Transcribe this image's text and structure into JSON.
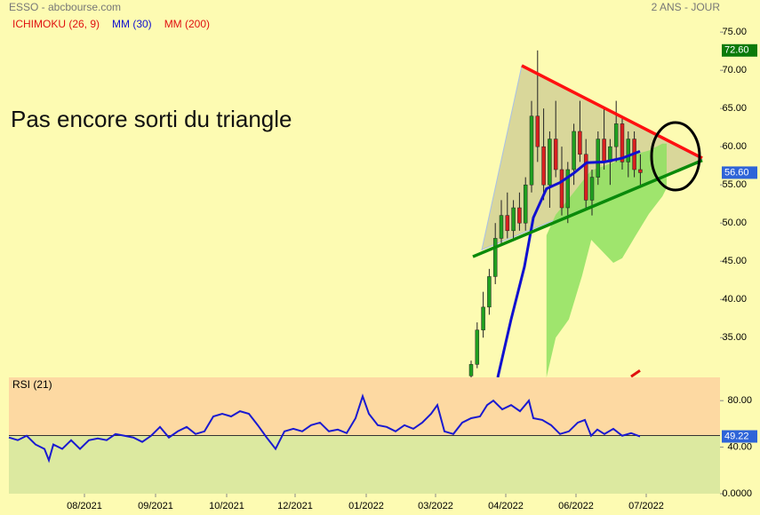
{
  "chart_data": {
    "type": "candlestick",
    "title": "ESSO - abcbourse.com",
    "period": "2 ANS - JOUR",
    "legend": [
      {
        "name": "ICHIMOKU (26, 9)",
        "color": "#e01010"
      },
      {
        "name": "MM (30)",
        "color": "#1010d0"
      },
      {
        "name": "MM (200)",
        "color": "#e01010"
      }
    ],
    "annotation": "Pas encore sorti du triangle",
    "xlim": [
      0,
      100
    ],
    "xticks": [
      {
        "value": 10.625,
        "label": "08/2021"
      },
      {
        "value": 20.625,
        "label": "09/2021"
      },
      {
        "value": 30.625,
        "label": "10/2021"
      },
      {
        "value": 40.25,
        "label": "12/2021"
      },
      {
        "value": 50.25,
        "label": "01/2022"
      },
      {
        "value": 60,
        "label": "03/2022"
      },
      {
        "value": 69.875,
        "label": "04/2022"
      },
      {
        "value": 79.75,
        "label": "06/2022"
      },
      {
        "value": 89.625,
        "label": "07/2022"
      }
    ],
    "ylim": [
      29.8,
      79.2
    ],
    "yticks": [
      {
        "value": 35,
        "label": "35.00"
      },
      {
        "value": 40,
        "label": "40.00"
      },
      {
        "value": 45,
        "label": "45.00"
      },
      {
        "value": 50,
        "label": "50.00"
      },
      {
        "value": 55,
        "label": "55.00"
      },
      {
        "value": 60,
        "label": "60.00"
      },
      {
        "value": 65,
        "label": "65.00"
      },
      {
        "value": 70,
        "label": "70.00"
      },
      {
        "value": 75,
        "label": "75.00"
      }
    ],
    "price_labels": [
      {
        "value": 72.6,
        "label": "72.60",
        "color": "#0a7a0a"
      },
      {
        "value": 56.6,
        "label": "56.60",
        "color": "#2e64d8"
      }
    ],
    "candles": {
      "up_color": "#20a020",
      "down_color": "#d82020",
      "x": [
        65,
        65.85,
        66.7,
        67.55,
        68.4,
        69.25,
        70.1,
        70.95,
        71.8,
        72.65,
        73.5,
        74.35,
        75.2,
        76.05,
        76.9,
        77.75,
        78.6,
        79.45,
        80.3,
        81.15,
        82,
        82.85,
        83.7,
        84.55,
        85.4,
        86.25,
        87.1,
        87.95,
        88.8
      ],
      "open": [
        30,
        31.5,
        36,
        39,
        43,
        48,
        51,
        49,
        52,
        50,
        55,
        64,
        60,
        55,
        61,
        57,
        52,
        57,
        62,
        59,
        53,
        56,
        61,
        58,
        60,
        63,
        58,
        61,
        57
      ],
      "high": [
        32,
        37,
        41,
        44,
        50,
        53,
        54,
        53,
        54,
        56,
        66,
        72.6,
        65,
        62,
        66,
        60,
        58,
        63,
        66,
        61,
        57,
        62,
        65,
        61,
        66,
        64,
        62,
        62,
        59
      ],
      "low": [
        29,
        31,
        35,
        38,
        42,
        47,
        48,
        48,
        49,
        49,
        54,
        58,
        53,
        52,
        56,
        51,
        50,
        55,
        58,
        52,
        51,
        55,
        57,
        55,
        58,
        57,
        56,
        56,
        55
      ],
      "close": [
        31.5,
        36,
        39,
        43,
        48,
        51,
        49,
        52,
        50,
        55,
        64,
        60,
        55,
        61,
        57,
        52,
        57,
        62,
        59,
        53,
        56,
        61,
        58,
        60,
        63,
        58,
        61,
        57,
        56.6
      ]
    },
    "series": [
      {
        "name": "MM (30)",
        "color": "#1010d0",
        "x": [
          68.75,
          70.6,
          72.5,
          73.75,
          75.6,
          77.5,
          79.4,
          81.25,
          83.75,
          86.25,
          88.75
        ],
        "values": [
          29.8,
          37.3,
          44.3,
          50.7,
          54.5,
          55.3,
          56.5,
          57.9,
          58.0,
          58.5,
          59.4
        ]
      },
      {
        "name": "MM (200)",
        "color": "#e01010",
        "x": [
          87.5,
          88.75
        ],
        "values": [
          29.9,
          30.7
        ]
      }
    ],
    "cloud": {
      "color": "#8ee060",
      "x": [
        75.6,
        76.9,
        78.75,
        80.6,
        81.9,
        85,
        86.25,
        88.1,
        90,
        91.9,
        92.5
      ],
      "upper": [
        48.4,
        51.1,
        53.2,
        55.4,
        56.9,
        57.9,
        58.5,
        59.0,
        59.5,
        60.4,
        60.4
      ],
      "lower": [
        29.8,
        35.0,
        37.4,
        43.1,
        47.8,
        44.8,
        45.4,
        48.3,
        51.2,
        53.5,
        54.6
      ]
    },
    "trendlines": [
      {
        "color": "#ff1010",
        "x": [
          72.125,
          97.5
        ],
        "y": [
          70.6,
          58.5
        ]
      },
      {
        "color": "#0a8a0a",
        "x": [
          65.25,
          97.5
        ],
        "y": [
          45.6,
          58.2
        ]
      }
    ],
    "triangle_fill": {
      "color": "#c9c890",
      "x": [
        72.125,
        66.5,
        97.5
      ],
      "y": [
        70.6,
        46.5,
        58.3
      ]
    },
    "rsi": {
      "label": "RSI (21)",
      "color": "#1a1ad0",
      "ylim": [
        0,
        100
      ],
      "yticks": [
        {
          "value": 0,
          "label": "0.0000"
        },
        {
          "value": 40,
          "label": "40.00"
        },
        {
          "value": 80,
          "label": "80.00"
        }
      ],
      "ref_line": 50,
      "last_label": {
        "value": 49.22,
        "label": "49.22"
      },
      "x": [
        0,
        1.25,
        2.5,
        3.75,
        5,
        5.625,
        6.25,
        7.5,
        8.75,
        10,
        11.25,
        12.5,
        13.75,
        15,
        16.25,
        17.5,
        18.75,
        20,
        21.25,
        22.5,
        23.75,
        25,
        26.25,
        27.5,
        28.75,
        30,
        31.25,
        32.5,
        33.75,
        35,
        36.25,
        37.5,
        38.75,
        40,
        41.25,
        42.5,
        43.75,
        45,
        46.25,
        47.5,
        48.75,
        49.75,
        50.625,
        51.875,
        53.125,
        54.375,
        55.625,
        56.875,
        58.125,
        59.375,
        60.25,
        61.25,
        62.5,
        63.75,
        65,
        66.25,
        67.25,
        68.125,
        69.375,
        70.625,
        71.875,
        73.125,
        73.75,
        75,
        76.25,
        77.5,
        78.75,
        80,
        81,
        81.875,
        82.75,
        83.75,
        85,
        86.25,
        87.5,
        88.75
      ],
      "values": [
        48.3,
        46.0,
        49.8,
        42.3,
        38.5,
        28.7,
        42.3,
        38.5,
        46.0,
        38.5,
        46.0,
        47.5,
        46.0,
        51.3,
        49.8,
        48.3,
        44.5,
        49.8,
        57.4,
        48.3,
        53.6,
        57.4,
        51.3,
        53.6,
        66.4,
        68.7,
        66.4,
        70.9,
        68.7,
        58.9,
        48.3,
        38.5,
        53.6,
        55.8,
        53.6,
        58.9,
        61.1,
        53.6,
        55.1,
        52.1,
        64.9,
        83.8,
        68.7,
        58.9,
        57.4,
        53.6,
        58.9,
        55.8,
        61.1,
        68.7,
        76.2,
        53.6,
        51.3,
        61.1,
        64.9,
        66.4,
        76.2,
        80.0,
        72.5,
        76.2,
        70.9,
        80.0,
        64.9,
        63.4,
        58.9,
        51.3,
        53.6,
        61.1,
        63.4,
        49.8,
        55.1,
        51.3,
        55.8,
        49.8,
        52.1,
        49.22
      ],
      "upper_color": "#fdd9a2",
      "lower_color": "#dce9a0"
    }
  }
}
